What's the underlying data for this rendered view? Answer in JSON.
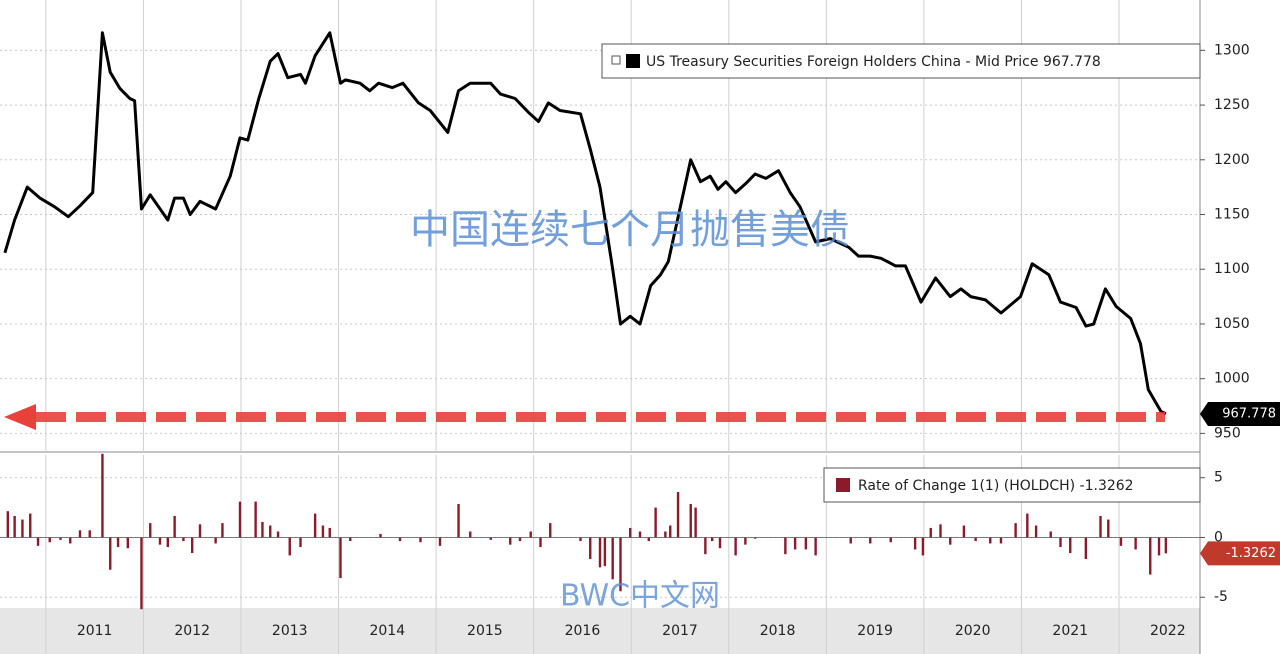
{
  "chart_data": [
    {
      "type": "line",
      "series": [
        {
          "name": "US Treasury Securities Foreign Holders China - Mid Price 967.778",
          "color": "#000000",
          "x": [
            2010.58,
            2010.68,
            2010.81,
            2010.94,
            2011.09,
            2011.23,
            2011.35,
            2011.48,
            2011.58,
            2011.66,
            2011.76,
            2011.86,
            2011.91,
            2011.98,
            2012.07,
            2012.25,
            2012.32,
            2012.41,
            2012.48,
            2012.58,
            2012.74,
            2012.89,
            2012.99,
            2013.07,
            2013.18,
            2013.3,
            2013.38,
            2013.48,
            2013.61,
            2013.66,
            2013.76,
            2013.91,
            2014.02,
            2014.07,
            2014.22,
            2014.32,
            2014.41,
            2014.55,
            2014.66,
            2014.82,
            2014.94,
            2015.12,
            2015.23,
            2015.35,
            2015.56,
            2015.66,
            2015.81,
            2015.95,
            2016.05,
            2016.15,
            2016.27,
            2016.48,
            2016.58,
            2016.68,
            2016.81,
            2016.89,
            2016.99,
            2017.09,
            2017.2,
            2017.3,
            2017.38,
            2017.61,
            2017.71,
            2017.81,
            2017.89,
            2017.97,
            2018.07,
            2018.17,
            2018.27,
            2018.38,
            2018.51,
            2018.63,
            2018.73,
            2018.89,
            2019.04,
            2019.23,
            2019.33,
            2019.45,
            2019.56,
            2019.71,
            2019.81,
            2019.97,
            2020.12,
            2020.27,
            2020.38,
            2020.48,
            2020.63,
            2020.79,
            2020.99,
            2021.11,
            2021.28,
            2021.4,
            2021.56,
            2021.66,
            2021.74,
            2021.86,
            2021.97,
            2022.12,
            2022.22,
            2022.3,
            2022.43,
            2022.48
          ],
          "values": [
            1115,
            1145,
            1175,
            1165,
            1157,
            1148,
            1158,
            1170,
            1316,
            1280,
            1265,
            1256,
            1254,
            1155,
            1168,
            1145,
            1165,
            1165,
            1150,
            1162,
            1155,
            1185,
            1220,
            1218,
            1255,
            1290,
            1297,
            1275,
            1278,
            1270,
            1295,
            1316,
            1270,
            1273,
            1270,
            1263,
            1270,
            1266,
            1270,
            1252,
            1245,
            1225,
            1263,
            1270,
            1270,
            1260,
            1256,
            1243,
            1235,
            1252,
            1245,
            1242,
            1210,
            1175,
            1100,
            1050,
            1057,
            1050,
            1085,
            1095,
            1107,
            1200,
            1180,
            1185,
            1173,
            1180,
            1170,
            1178,
            1187,
            1183,
            1190,
            1170,
            1157,
            1125,
            1128,
            1120,
            1112,
            1112,
            1110,
            1103,
            1103,
            1070,
            1092,
            1075,
            1082,
            1075,
            1072,
            1060,
            1075,
            1105,
            1095,
            1070,
            1065,
            1048,
            1050,
            1082,
            1066,
            1055,
            1032,
            990,
            970,
            967.778
          ]
        }
      ],
      "xlim": [
        2010.53,
        2022.83
      ],
      "ylim": [
        933,
        1346
      ],
      "yticks": [
        950,
        1000,
        1050,
        1100,
        1150,
        1200,
        1250,
        1300
      ],
      "annotation": "中国连续七个月抛售美债"
    },
    {
      "type": "bar",
      "series": [
        {
          "name": "Rate of Change 1(1) (HOLDCH) -1.3262",
          "color": "#8b1a2b",
          "x": [
            2010.61,
            2010.68,
            2010.76,
            2010.84,
            2010.92,
            2011.04,
            2011.15,
            2011.25,
            2011.35,
            2011.45,
            2011.58,
            2011.66,
            2011.74,
            2011.84,
            2011.98,
            2012.07,
            2012.17,
            2012.25,
            2012.32,
            2012.41,
            2012.5,
            2012.58,
            2012.74,
            2012.81,
            2012.99,
            2013.15,
            2013.22,
            2013.3,
            2013.38,
            2013.5,
            2013.61,
            2013.76,
            2013.84,
            2013.91,
            2014.02,
            2014.12,
            2014.43,
            2014.63,
            2014.84,
            2015.04,
            2015.23,
            2015.35,
            2015.56,
            2015.76,
            2015.86,
            2015.97,
            2016.07,
            2016.17,
            2016.48,
            2016.58,
            2016.68,
            2016.73,
            2016.81,
            2016.89,
            2016.99,
            2017.09,
            2017.18,
            2017.25,
            2017.35,
            2017.4,
            2017.48,
            2017.61,
            2017.66,
            2017.76,
            2017.83,
            2017.91,
            2018.07,
            2018.17,
            2018.27,
            2018.58,
            2018.68,
            2018.79,
            2018.89,
            2019.25,
            2019.45,
            2019.66,
            2019.91,
            2019.99,
            2020.07,
            2020.17,
            2020.27,
            2020.41,
            2020.53,
            2020.68,
            2020.79,
            2020.94,
            2021.06,
            2021.15,
            2021.3,
            2021.4,
            2021.5,
            2021.66,
            2021.81,
            2021.89,
            2022.02,
            2022.17,
            2022.32,
            2022.41,
            2022.48
          ],
          "values": [
            2.2,
            1.8,
            1.5,
            2.0,
            -0.7,
            -0.4,
            -0.2,
            -0.5,
            0.6,
            0.6,
            7.0,
            -2.7,
            -0.8,
            -0.9,
            -6.0,
            1.2,
            -0.6,
            -0.8,
            1.8,
            -0.3,
            -1.3,
            1.1,
            -0.5,
            1.2,
            3.0,
            3.0,
            1.3,
            1.0,
            0.5,
            -1.5,
            -0.8,
            2.0,
            1.0,
            0.8,
            -3.4,
            -0.3,
            0.3,
            -0.3,
            -0.4,
            -0.7,
            2.8,
            0.5,
            -0.2,
            -0.6,
            -0.3,
            0.5,
            -0.8,
            1.2,
            -0.3,
            -1.8,
            -2.5,
            -2.4,
            -3.5,
            -4.5,
            0.8,
            0.5,
            -0.3,
            2.5,
            0.5,
            1.0,
            3.8,
            2.8,
            2.5,
            -1.4,
            -0.3,
            -0.9,
            -1.5,
            -0.6,
            -0.1,
            -1.4,
            -1.0,
            -1.0,
            -1.5,
            -0.5,
            -0.5,
            -0.4,
            -1.0,
            -1.5,
            0.8,
            1.1,
            -0.6,
            1.0,
            -0.3,
            -0.5,
            -0.5,
            1.2,
            2.0,
            1.0,
            0.5,
            -0.8,
            -1.3,
            -1.8,
            1.8,
            1.5,
            -0.7,
            -1.0,
            -3.1,
            -1.5,
            -1.3262
          ]
        }
      ],
      "xlim": [
        2010.53,
        2022.83
      ],
      "ylim": [
        -5.9,
        6.9
      ],
      "yticks": [
        -5,
        0,
        5
      ],
      "xticks": [
        {
          "value": 2011.5,
          "label": "2011"
        },
        {
          "value": 2012.5,
          "label": "2012"
        },
        {
          "value": 2013.5,
          "label": "2013"
        },
        {
          "value": 2014.5,
          "label": "2014"
        },
        {
          "value": 2015.5,
          "label": "2015"
        },
        {
          "value": 2016.5,
          "label": "2016"
        },
        {
          "value": 2017.5,
          "label": "2017"
        },
        {
          "value": 2018.5,
          "label": "2018"
        },
        {
          "value": 2019.5,
          "label": "2019"
        },
        {
          "value": 2020.5,
          "label": "2020"
        },
        {
          "value": 2021.5,
          "label": "2021"
        },
        {
          "value": 2022.5,
          "label": "2022"
        }
      ],
      "annotation": "BWC中文网"
    }
  ]
}
